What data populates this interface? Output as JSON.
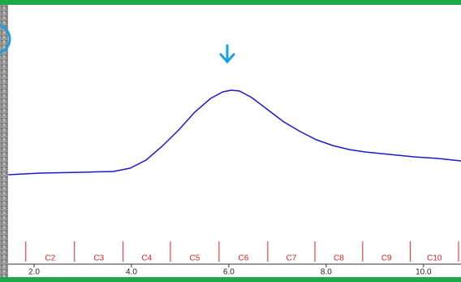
{
  "chart_data": {
    "type": "line",
    "x": [
      1.47,
      2.13,
      2.97,
      3.63,
      3.97,
      4.3,
      4.63,
      4.97,
      5.3,
      5.63,
      5.88,
      6.05,
      6.22,
      6.47,
      6.8,
      7.13,
      7.47,
      7.8,
      8.13,
      8.47,
      8.8,
      9.3,
      9.8,
      10.3,
      10.77
    ],
    "values": [
      110,
      112,
      113,
      114,
      118,
      128,
      145,
      165,
      187,
      204,
      212,
      214,
      213,
      205,
      190,
      175,
      163,
      153,
      146,
      141,
      138,
      135,
      132,
      130,
      127
    ],
    "color": "#1a1ad0",
    "xlim": [
      1.3,
      10.77
    ],
    "ylim": [
      0,
      322
    ],
    "xticks": [
      {
        "value": 2,
        "label": "2.0"
      },
      {
        "value": 4,
        "label": "4.0"
      },
      {
        "value": 6,
        "label": "6.0"
      },
      {
        "value": 8,
        "label": "8.0"
      },
      {
        "value": 10,
        "label": "10.0"
      }
    ],
    "marker_lines": [
      1.83,
      2.83,
      3.83,
      4.8,
      5.8,
      6.8,
      7.77,
      8.75,
      9.73,
      10.72
    ],
    "marker_labels": [
      "C2",
      "C3",
      "C4",
      "C5",
      "C6",
      "C7",
      "C8",
      "C9",
      "C10"
    ],
    "marker_color": "#e02020"
  }
}
